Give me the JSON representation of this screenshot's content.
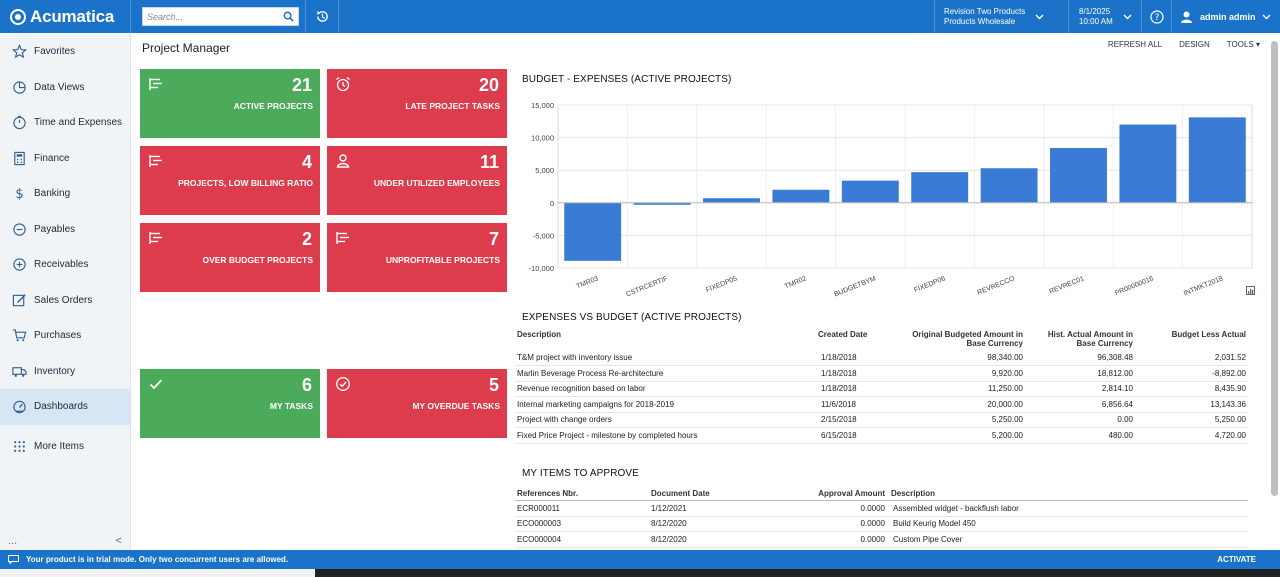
{
  "app": {
    "logo_text": "Acumatica",
    "search_placeholder": "Search...",
    "tenant_line1": "Revision Two Products",
    "tenant_line2": "Products Wholesale",
    "date_line1": "8/1/2025",
    "date_line2": "10:00 AM",
    "user": "admin admin",
    "accent": "#1a73c9"
  },
  "sidebar": {
    "items": [
      {
        "label": "Favorites",
        "icon": "star-icon"
      },
      {
        "label": "Data Views",
        "icon": "pie-chart-icon"
      },
      {
        "label": "Time and Expenses",
        "icon": "clock-icon"
      },
      {
        "label": "Finance",
        "icon": "calculator-icon"
      },
      {
        "label": "Banking",
        "icon": "dollar-icon"
      },
      {
        "label": "Payables",
        "icon": "minus-circle-icon"
      },
      {
        "label": "Receivables",
        "icon": "plus-circle-icon"
      },
      {
        "label": "Sales Orders",
        "icon": "edit-icon"
      },
      {
        "label": "Purchases",
        "icon": "cart-icon"
      },
      {
        "label": "Inventory",
        "icon": "truck-icon"
      },
      {
        "label": "Dashboards",
        "icon": "gauge-icon"
      },
      {
        "label": "More Items",
        "icon": "grid-dots-icon"
      }
    ],
    "active": "Dashboards",
    "bottom_left": "...",
    "bottom_right": "<"
  },
  "page": {
    "title": "Project Manager",
    "toolbar": {
      "refresh": "REFRESH ALL",
      "design": "DESIGN",
      "tools": "TOOLS"
    }
  },
  "tiles": [
    {
      "count": "21",
      "label": "ACTIVE PROJECTS",
      "color": "#4bab5b",
      "icon": "project-icon"
    },
    {
      "count": "20",
      "label": "LATE PROJECT TASKS",
      "color": "#dc3c4b",
      "icon": "alarm-clock-icon"
    },
    {
      "count": "4",
      "label": "PROJECTS, LOW BILLING RATIO",
      "color": "#dc3c4b",
      "icon": "project-icon"
    },
    {
      "count": "11",
      "label": "UNDER UTILIZED EMPLOYEES",
      "color": "#dc3c4b",
      "icon": "person-icon"
    },
    {
      "count": "2",
      "label": "OVER BUDGET PROJECTS",
      "color": "#dc3c4b",
      "icon": "project-icon"
    },
    {
      "count": "7",
      "label": "UNPROFITABLE PROJECTS",
      "color": "#dc3c4b",
      "icon": "project-icon"
    },
    {
      "count": "6",
      "label": "MY TASKS",
      "color": "#4bab5b",
      "icon": "checkmark-icon"
    },
    {
      "count": "5",
      "label": "MY OVERDUE TASKS",
      "color": "#dc3c4b",
      "icon": "check-circle-icon"
    }
  ],
  "chart_title": "BUDGET - EXPENSES (ACTIVE PROJECTS)",
  "chart_data": {
    "type": "bar",
    "title": "BUDGET - EXPENSES (ACTIVE PROJECTS)",
    "categories": [
      "TMR03",
      "CSTRCERTIF",
      "FIXEDP05",
      "TMR02",
      "BUDGETBYM",
      "FIXEDP06",
      "REVRECCO",
      "REVREC01",
      "PR00000016",
      "INTMKT2018"
    ],
    "values": [
      -8900,
      -300,
      700,
      2000,
      3400,
      4700,
      5300,
      8400,
      12000,
      13100
    ],
    "ylim": [
      -10000,
      15000
    ],
    "yticks": [
      -10000,
      -5000,
      0,
      5000,
      10000,
      15000
    ],
    "ytick_labels": [
      "-10,000",
      "-5,000",
      "0",
      "5,000",
      "10,000",
      "15,000"
    ],
    "bar_color": "#3a7bd5",
    "grid": true
  },
  "expenses_title": "EXPENSES VS BUDGET (ACTIVE PROJECTS)",
  "expenses": {
    "headers": [
      "Description",
      "Created Date",
      "Original Budgeted Amount in Base Currency",
      "Hist. Actual Amount in Base Currency",
      "Budget Less Actual"
    ],
    "rows": [
      [
        "T&M project with inventory issue",
        "1/18/2018",
        "98,340.00",
        "96,308.48",
        "2,031.52"
      ],
      [
        "Marlin Beverage Process Re-architecture",
        "1/18/2018",
        "9,920.00",
        "18,812.00",
        "-8,892.00"
      ],
      [
        "Revenue recognition based on labor",
        "1/18/2018",
        "11,250.00",
        "2,814.10",
        "8,435.90"
      ],
      [
        "Internal marketing campaigns for 2018-2019",
        "11/6/2018",
        "20,000.00",
        "6,856.64",
        "13,143.36"
      ],
      [
        "Project with change orders",
        "2/15/2018",
        "5,250.00",
        "0.00",
        "5,250.00"
      ],
      [
        "Fixed Price Project - milestone by completed hours",
        "6/15/2018",
        "5,200.00",
        "480.00",
        "4,720.00"
      ]
    ]
  },
  "approve_title": "MY ITEMS TO APPROVE",
  "approvals": {
    "headers": [
      "References Nbr.",
      "Document Date",
      "Approval Amount",
      "Description"
    ],
    "rows": [
      [
        "ECR000011",
        "1/12/2021",
        "0.0000",
        "Assembled widget - backflush labor"
      ],
      [
        "ECO000003",
        "8/12/2020",
        "0.0000",
        "Build Keurig Model 450"
      ],
      [
        "ECO000004",
        "8/12/2020",
        "0.0000",
        "Custom Pipe Cover"
      ]
    ]
  },
  "statusbar": {
    "message": "Your product is in trial mode. Only two concurrent users are allowed.",
    "activate": "ACTIVATE"
  }
}
